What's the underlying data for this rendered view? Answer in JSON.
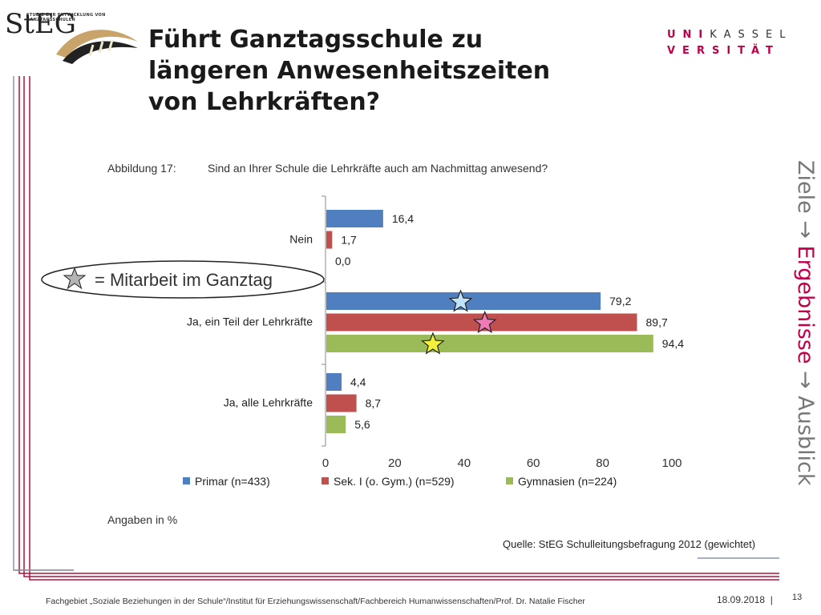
{
  "logo": {
    "brand": "StEG",
    "subtitle": "STUDIE ZUR ENTWICKLUNG VON GANZTAGSSCHULEN"
  },
  "university": {
    "line1_red": "UNI",
    "line1_gray": "KASSEL",
    "line2": "VERSITÄT"
  },
  "title": {
    "line1": "Führt Ganztagsschule zu",
    "line2": "längeren Anwesenheitszeiten",
    "line3": "von Lehrkräften?"
  },
  "side_nav": {
    "before": "Ziele",
    "arrow1": " → ",
    "highlight": "Ergebnisse",
    "arrow2": " → ",
    "after": "Ausblick"
  },
  "figure": {
    "caption": "Abbildung 17:",
    "question": "Sind an Ihrer Schule die Lehrkräfte auch am Nachmittag anwesend?",
    "units_note": "Angaben in %"
  },
  "annotation": {
    "star_legend": "= Mitarbeit im Ganztag"
  },
  "colors": {
    "primar": "#4f7fbf",
    "sek": "#c0504d",
    "gymnasien": "#9bbb59",
    "accent": "#c0004a"
  },
  "chart_data": {
    "type": "bar",
    "orientation": "horizontal",
    "categories": [
      "Nein",
      "Ja, ein Teil der Lehrkräfte",
      "Ja, alle Lehrkräfte"
    ],
    "series": [
      {
        "name": "Primar (n=433)",
        "values": [
          16.4,
          79.2,
          4.4
        ],
        "labels": [
          "16,4",
          "79,2",
          "4,4"
        ]
      },
      {
        "name": "Sek. I (o. Gym.) (n=529)",
        "values": [
          1.7,
          89.7,
          8.7
        ],
        "labels": [
          "1,7",
          "89,7",
          "8,7"
        ]
      },
      {
        "name": "Gymnasien (n=224)",
        "values": [
          0.0,
          94.4,
          5.6
        ],
        "labels": [
          "0,0",
          "94,4",
          "5,6"
        ]
      }
    ],
    "star_markers": [
      {
        "series": "Primar (n=433)",
        "category": "Ja, ein Teil der Lehrkräfte",
        "value": 39,
        "color": "#bfe4f7"
      },
      {
        "series": "Sek. I (o. Gym.) (n=529)",
        "category": "Ja, ein Teil der Lehrkräfte",
        "value": 46,
        "color": "#f07ab8"
      },
      {
        "series": "Gymnasien (n=224)",
        "category": "Ja, ein Teil der Lehrkräfte",
        "value": 31,
        "color": "#f2f03a"
      }
    ],
    "xlim": [
      0,
      100
    ],
    "xticks": [
      0,
      20,
      40,
      60,
      80,
      100
    ],
    "xlabel": "",
    "ylabel": "",
    "legend": "bottom",
    "grid": false
  },
  "source": "Quelle: StEG Schulleitungsbefragung 2012 (gewichtet)",
  "footer": {
    "text": "Fachgebiet „Soziale Beziehungen in der Schule“/Institut für Erziehungswissenschaft/Fachbereich Humanwissenschaften/Prof. Dr. Natalie Fischer",
    "date": "18.09.2018",
    "separator": "|",
    "page": "13"
  }
}
